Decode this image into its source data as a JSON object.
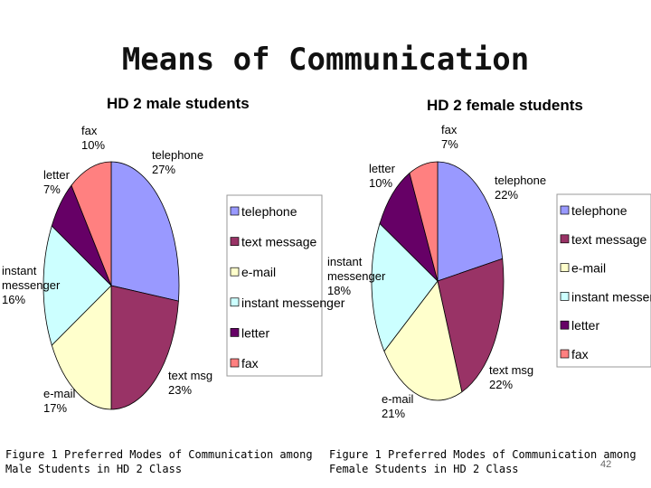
{
  "slide": {
    "title": "Means of Communication",
    "page_number": "42"
  },
  "colors": {
    "telephone": "#9999ff",
    "text message": "#993366",
    "e-mail": "#ffffcc",
    "instant messenger": "#ccffff",
    "letter": "#660066",
    "fax": "#ff8080"
  },
  "chart_data": [
    {
      "type": "pie",
      "title": "HD 2 male students",
      "legend_placement": "right",
      "categories": [
        "telephone",
        "text message",
        "e-mail",
        "instant messenger",
        "letter",
        "fax"
      ],
      "values": [
        27,
        23,
        17,
        16,
        7,
        10
      ],
      "labels": [
        [
          "telephone",
          "27%"
        ],
        [
          "text msg",
          "23%"
        ],
        [
          "e-mail",
          "17%"
        ],
        [
          "instant",
          "messenger",
          "16%"
        ],
        [
          "letter",
          "7%"
        ],
        [
          "fax",
          "10%"
        ]
      ],
      "caption_line1": "Figure 1   Preferred Modes of Communication among",
      "caption_line2": "Male Students in HD 2 Class"
    },
    {
      "type": "pie",
      "title": "HD 2 female students",
      "legend_placement": "right",
      "categories": [
        "telephone",
        "text message",
        "e-mail",
        "instant messenger",
        "letter",
        "fax"
      ],
      "values": [
        22,
        22,
        21,
        18,
        10,
        7
      ],
      "labels": [
        [
          "telephone",
          "22%"
        ],
        [
          "text msg",
          "22%"
        ],
        [
          "e-mail",
          "21%"
        ],
        [
          "instant",
          "messenger",
          "18%"
        ],
        [
          "letter",
          "10%"
        ],
        [
          "fax",
          "7%"
        ]
      ],
      "caption_line1": "Figure 1   Preferred Modes of Communication among",
      "caption_line2": "Female Students in HD 2 Class"
    }
  ]
}
